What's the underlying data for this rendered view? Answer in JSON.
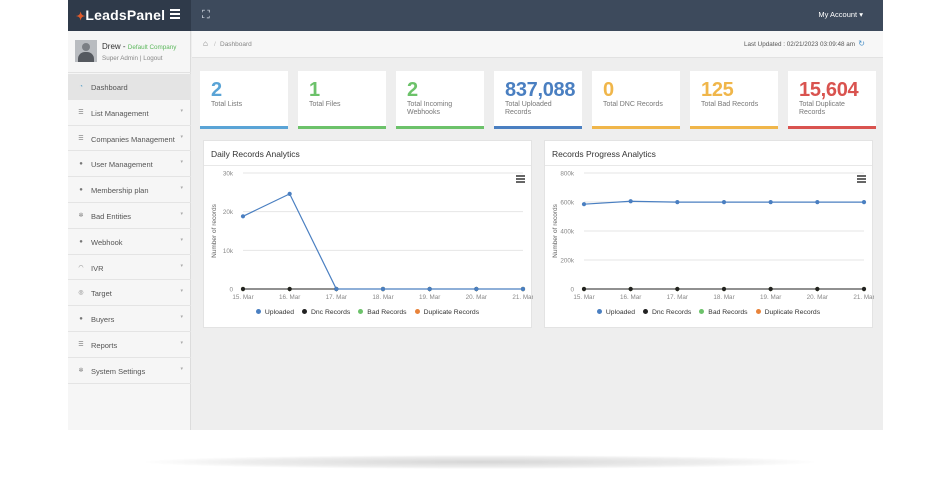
{
  "brand": {
    "name": "LeadsPanel",
    "accent": "#e05a2a"
  },
  "header": {
    "account_label": "My Account ▾"
  },
  "profile": {
    "name": "Drew - ",
    "company": "Default Company",
    "role": "Super Admin",
    "separator": " | ",
    "logout": "Logout"
  },
  "sidebar": {
    "items": [
      {
        "label": "Dashboard",
        "icon": "dashboard-icon",
        "active": true
      },
      {
        "label": "List Management",
        "icon": "list-icon"
      },
      {
        "label": "Companies Management",
        "icon": "list-icon"
      },
      {
        "label": "User Management",
        "icon": "user-icon"
      },
      {
        "label": "Membership plan",
        "icon": "user-icon"
      },
      {
        "label": "Bad Entities",
        "icon": "cogs-icon"
      },
      {
        "label": "Webhook",
        "icon": "user-icon"
      },
      {
        "label": "IVR",
        "icon": "headphones-icon"
      },
      {
        "label": "Target",
        "icon": "target-icon"
      },
      {
        "label": "Buyers",
        "icon": "users-icon"
      },
      {
        "label": "Reports",
        "icon": "list-icon"
      },
      {
        "label": "System Settings",
        "icon": "cogs-icon"
      }
    ]
  },
  "breadcrumb": {
    "current": "Dashboard",
    "separator": "/"
  },
  "last_updated": "Last Updated : 02/21/2023 03:09:48 am",
  "stats": [
    {
      "value": "2",
      "label": "Total Lists",
      "color": "#5aa4d6"
    },
    {
      "value": "1",
      "label": "Total Files",
      "color": "#6cc26a"
    },
    {
      "value": "2",
      "label": "Total Incoming Webhooks",
      "color": "#6cc26a"
    },
    {
      "value": "837,088",
      "label": "Total Uploaded Records",
      "color": "#4a7fc1"
    },
    {
      "value": "0",
      "label": "Total DNC Records",
      "color": "#f0b64a"
    },
    {
      "value": "125",
      "label": "Total Bad Records",
      "color": "#f0b64a"
    },
    {
      "value": "15,604",
      "label": "Total Duplicate Records",
      "color": "#d9534f"
    }
  ],
  "chart_data": [
    {
      "type": "line",
      "title": "Daily Records Analytics",
      "xlabel": "",
      "ylabel": "Number of records",
      "categories": [
        "15. Mar",
        "16. Mar",
        "17. Mar",
        "18. Mar",
        "19. Mar",
        "20. Mar",
        "21. Mar"
      ],
      "ylim": [
        0,
        30000
      ],
      "yticks": [
        "0",
        "10k",
        "20k",
        "30k"
      ],
      "yticks_values": [
        0,
        10000,
        20000,
        30000
      ],
      "grid": true,
      "legend_position": "bottom",
      "series": [
        {
          "name": "Uploaded",
          "color": "#4a7fc1",
          "values": [
            18800,
            24600,
            0,
            0,
            0,
            0,
            0
          ]
        },
        {
          "name": "Dnc Records",
          "color": "#222222",
          "values": [
            0,
            0,
            0,
            0,
            0,
            0,
            0
          ]
        },
        {
          "name": "Bad Records",
          "color": "#6cc26a",
          "values": [
            0,
            0,
            0,
            0,
            0,
            0,
            0
          ]
        },
        {
          "name": "Duplicate Records",
          "color": "#e8833a",
          "values": [
            0,
            0,
            0,
            0,
            0,
            0,
            0
          ]
        }
      ]
    },
    {
      "type": "line",
      "title": "Records Progress Analytics",
      "xlabel": "",
      "ylabel": "Number of records",
      "categories": [
        "15. Mar",
        "16. Mar",
        "17. Mar",
        "18. Mar",
        "19. Mar",
        "20. Mar",
        "21. Mar"
      ],
      "ylim": [
        0,
        800000
      ],
      "yticks": [
        "0",
        "200k",
        "400k",
        "600k",
        "800k"
      ],
      "yticks_values": [
        0,
        200000,
        400000,
        600000,
        800000
      ],
      "grid": true,
      "legend_position": "bottom",
      "series": [
        {
          "name": "Uploaded",
          "color": "#4a7fc1",
          "values": [
            585000,
            605000,
            599000,
            599000,
            599000,
            599000,
            599000
          ]
        },
        {
          "name": "Dnc Records",
          "color": "#222222",
          "values": [
            0,
            0,
            0,
            0,
            0,
            0,
            0
          ]
        },
        {
          "name": "Bad Records",
          "color": "#6cc26a",
          "values": [
            0,
            0,
            0,
            0,
            0,
            0,
            0
          ]
        },
        {
          "name": "Duplicate Records",
          "color": "#e8833a",
          "values": [
            0,
            0,
            0,
            0,
            0,
            0,
            0
          ]
        }
      ]
    }
  ]
}
